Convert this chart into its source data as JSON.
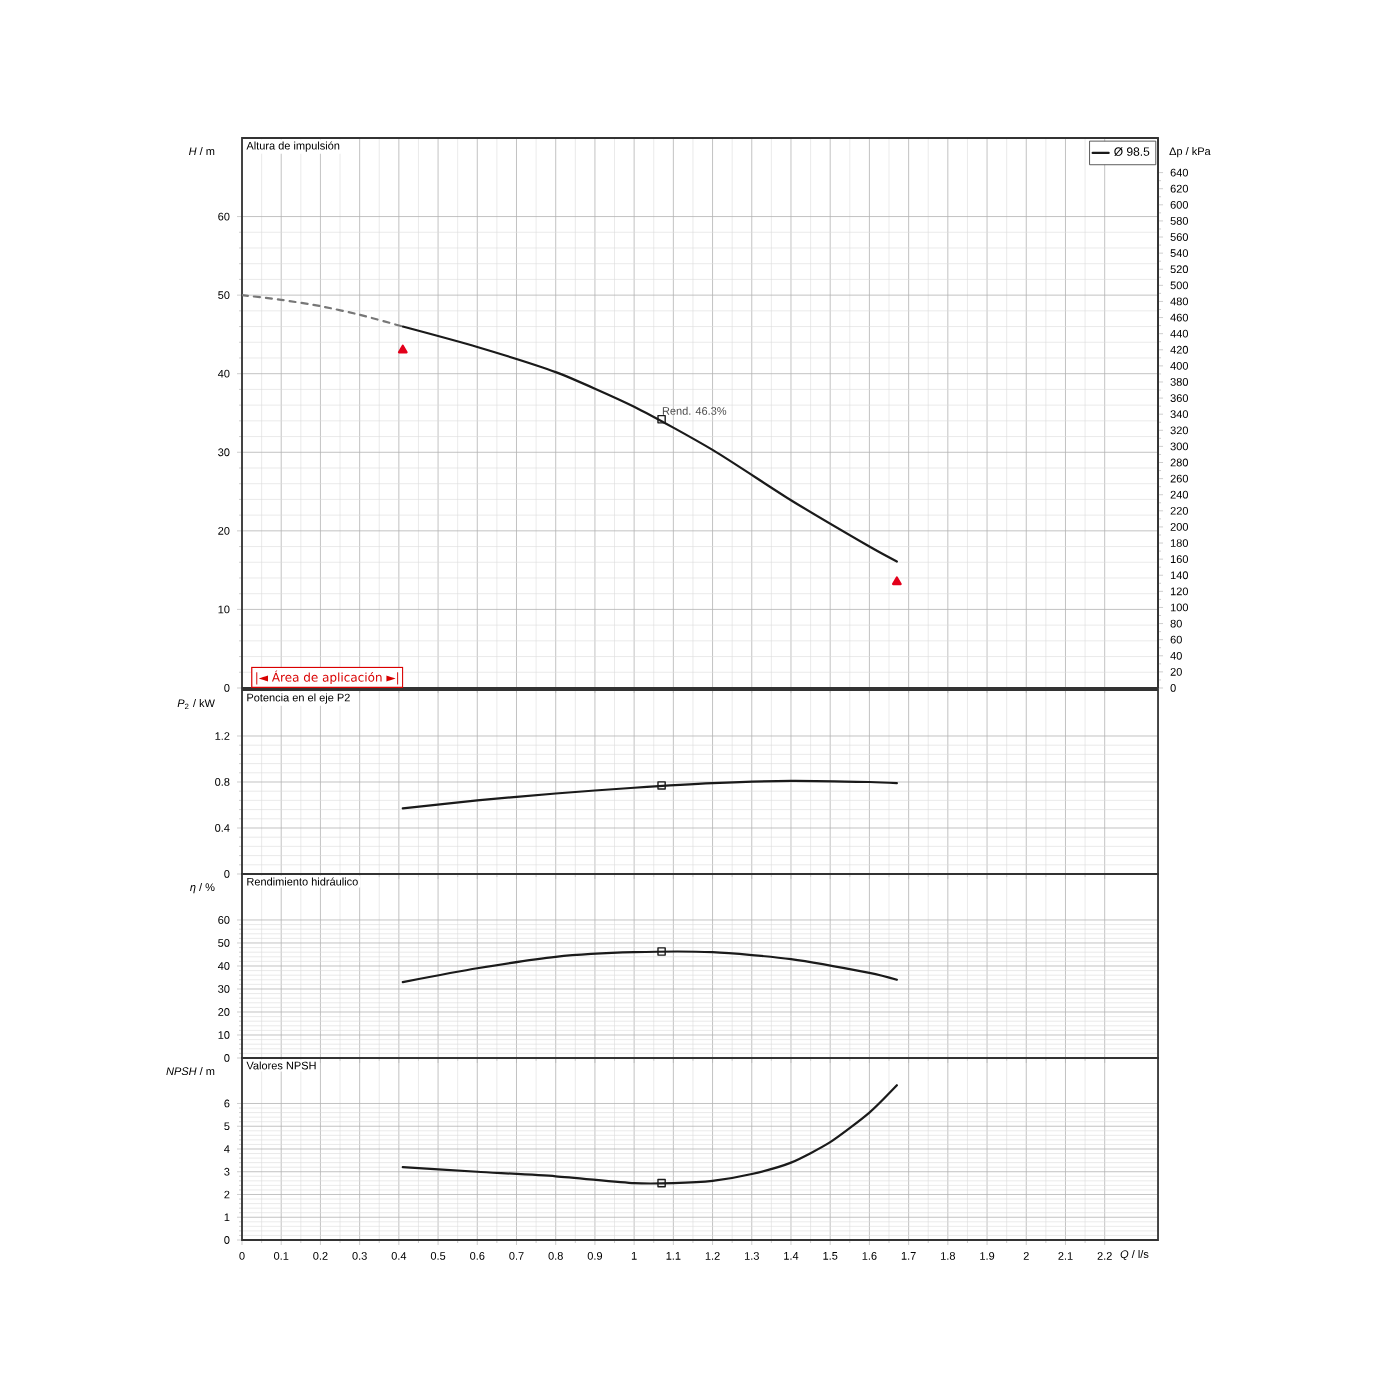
{
  "chart_data": [
    {
      "type": "line",
      "title": "Altura de impulsión",
      "ylabel": "*H* / m",
      "y2label": "Δp / kPa",
      "xlim": [
        0,
        2.336
      ],
      "xticks": [
        0,
        0.1,
        0.2,
        0.3,
        0.4,
        0.5,
        0.6,
        0.7,
        0.8,
        0.9,
        1,
        1.1,
        1.2,
        1.3,
        1.4,
        1.5,
        1.6,
        1.7,
        1.8,
        1.9,
        2,
        2.1,
        2.2
      ],
      "ylim": [
        0,
        70
      ],
      "yticks": [
        0,
        10,
        20,
        30,
        40,
        50,
        60
      ],
      "y2lim": [
        0,
        683
      ],
      "y2ticks": [
        0,
        20,
        40,
        60,
        80,
        100,
        120,
        140,
        160,
        180,
        200,
        220,
        240,
        260,
        280,
        300,
        320,
        340,
        360,
        380,
        400,
        420,
        440,
        460,
        480,
        500,
        520,
        540,
        560,
        580,
        600,
        620,
        640
      ],
      "grid": true,
      "tick_labels": "y",
      "legend": "top right",
      "series": [
        {
          "color": "#777777",
          "line_style": "dashed",
          "x": [
            0,
            0.1,
            0.2,
            0.3,
            0.41
          ],
          "values": [
            50,
            49.4,
            48.6,
            47.5,
            46
          ]
        },
        {
          "name": "Ø 98.5",
          "color": "#1a1a1a",
          "line_style": "solid",
          "x": [
            0.41,
            0.6,
            0.8,
            1.0,
            1.2,
            1.4,
            1.6,
            1.67
          ],
          "values": [
            46,
            43.4,
            40.2,
            35.8,
            30.3,
            23.9,
            18.0,
            16.1
          ]
        },
        {
          "type": "scatter",
          "color": "#1a1a1a",
          "marker": "square",
          "x": [
            1.07
          ],
          "values": [
            34.2
          ]
        },
        {
          "type": "scatter",
          "color": "#e3001b",
          "marker": "triangle",
          "x": [
            0.41,
            1.67
          ],
          "values": [
            43,
            13.5
          ]
        }
      ],
      "annotations": [
        {
          "text": "Rend.  46.3%",
          "x": 1.07,
          "y": 34.2
        },
        "|◄ Área de aplicación ►|"
      ]
    },
    {
      "type": "line",
      "title": "Potencia en el eje P2",
      "ylabel": "*P*$_{2}$ / kW",
      "xlim": [
        0,
        2.336
      ],
      "xticks": [
        0,
        0.1,
        0.2,
        0.3,
        0.4,
        0.5,
        0.6,
        0.7,
        0.8,
        0.9,
        1,
        1.1,
        1.2,
        1.3,
        1.4,
        1.5,
        1.6,
        1.7,
        1.8,
        1.9,
        2,
        2.1,
        2.2
      ],
      "ylim": [
        0,
        1.6
      ],
      "yticks": [
        0,
        0.4,
        0.8,
        1.2
      ],
      "grid": true,
      "tick_labels": "y",
      "series": [
        {
          "color": "#1a1a1a",
          "line_style": "solid",
          "x": [
            0.41,
            0.6,
            0.8,
            1.0,
            1.2,
            1.4,
            1.6,
            1.67
          ],
          "values": [
            0.57,
            0.64,
            0.7,
            0.75,
            0.79,
            0.81,
            0.8,
            0.79
          ]
        },
        {
          "type": "scatter",
          "color": "#1a1a1a",
          "marker": "square",
          "x": [
            1.07
          ],
          "values": [
            0.77
          ]
        }
      ]
    },
    {
      "type": "line",
      "title": "Rendimiento hidráulico",
      "ylabel": "*η* / %",
      "xlim": [
        0,
        2.336
      ],
      "xticks": [
        0,
        0.1,
        0.2,
        0.3,
        0.4,
        0.5,
        0.6,
        0.7,
        0.8,
        0.9,
        1,
        1.1,
        1.2,
        1.3,
        1.4,
        1.5,
        1.6,
        1.7,
        1.8,
        1.9,
        2,
        2.1,
        2.2
      ],
      "ylim": [
        0,
        80
      ],
      "yticks": [
        0,
        10,
        20,
        30,
        40,
        50,
        60
      ],
      "grid": true,
      "tick_labels": "y",
      "series": [
        {
          "color": "#1a1a1a",
          "line_style": "solid",
          "x": [
            0.41,
            0.6,
            0.8,
            1.0,
            1.2,
            1.4,
            1.6,
            1.67
          ],
          "values": [
            33,
            39,
            44,
            46,
            46,
            43,
            37,
            34
          ]
        },
        {
          "type": "scatter",
          "color": "#1a1a1a",
          "marker": "square",
          "x": [
            1.07
          ],
          "values": [
            46.3
          ]
        }
      ]
    },
    {
      "type": "line",
      "title": "Valores NPSH",
      "ylabel": "*NPSH* / m",
      "xlabel": "*Q* / l/s",
      "xlim": [
        0,
        2.336
      ],
      "xticks": [
        0,
        0.1,
        0.2,
        0.3,
        0.4,
        0.5,
        0.6,
        0.7,
        0.8,
        0.9,
        1,
        1.1,
        1.2,
        1.3,
        1.4,
        1.5,
        1.6,
        1.7,
        1.8,
        1.9,
        2,
        2.1,
        2.2
      ],
      "ylim": [
        0,
        8
      ],
      "yticks": [
        0,
        1,
        2,
        3,
        4,
        5,
        6
      ],
      "grid": true,
      "series": [
        {
          "color": "#1a1a1a",
          "line_style": "solid",
          "x": [
            0.41,
            0.6,
            0.8,
            1.0,
            1.1,
            1.2,
            1.3,
            1.4,
            1.5,
            1.6,
            1.67
          ],
          "values": [
            3.2,
            3.0,
            2.8,
            2.5,
            2.5,
            2.6,
            2.9,
            3.4,
            4.3,
            5.6,
            6.8
          ]
        },
        {
          "type": "scatter",
          "color": "#1a1a1a",
          "marker": "square",
          "x": [
            1.07
          ],
          "values": [
            2.5
          ]
        }
      ]
    }
  ]
}
